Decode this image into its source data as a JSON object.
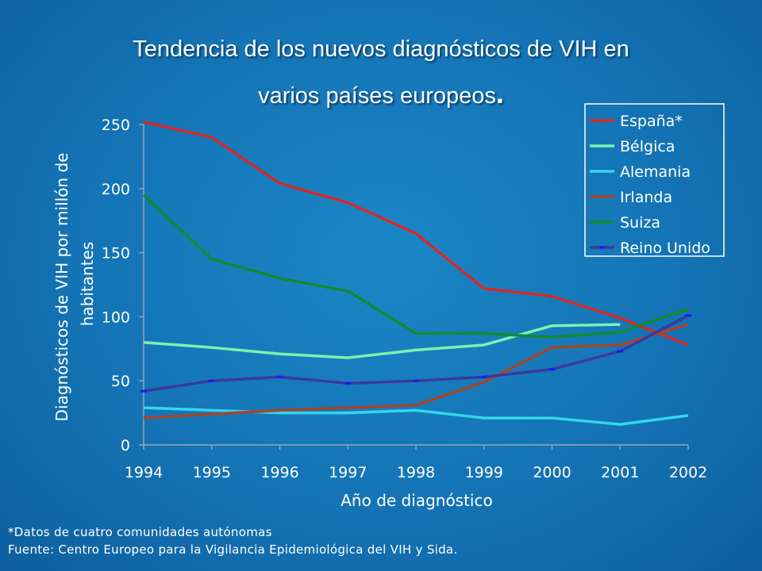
{
  "slide": {
    "title_line1": "Tendencia de los nuevos diagnósticos de VIH en",
    "title_line2": "varios países europeos",
    "title_end": ".",
    "footnote": "*Datos de cuatro comunidades autónomas",
    "source": "Fuente: Centro Europeo para la Vigilancia Epidemiológica del VIH y Sida."
  },
  "chart_data": {
    "type": "line",
    "title": "Tendencia de los nuevos diagnósticos de VIH en varios países europeos.",
    "xlabel": "Año de diagnóstico",
    "ylabel_line1": "Diagnósticos de VIH por millón de",
    "ylabel_line2": "habitantes",
    "x": [
      "1994",
      "1995",
      "1996",
      "1997",
      "1998",
      "1999",
      "2000",
      "2001",
      "2002"
    ],
    "ylim": [
      0,
      250
    ],
    "yticks": [
      0,
      50,
      100,
      150,
      200,
      250
    ],
    "grid": false,
    "legend_position": "top-right",
    "series": [
      {
        "name": "España*",
        "color": "#d42a2a",
        "values": [
          252,
          240,
          204,
          189,
          165,
          122,
          116,
          99,
          78
        ]
      },
      {
        "name": "Bélgica",
        "color": "#7ef0b0",
        "values": [
          80,
          76,
          71,
          68,
          74,
          78,
          93,
          94,
          null
        ]
      },
      {
        "name": "Alemania",
        "color": "#33d6f0",
        "values": [
          29,
          27,
          25,
          25,
          27,
          21,
          21,
          16,
          23
        ]
      },
      {
        "name": "Irlanda",
        "color": "#a4462a",
        "values": [
          21,
          24,
          27,
          29,
          31,
          49,
          76,
          78,
          94
        ]
      },
      {
        "name": "Suiza",
        "color": "#128a32",
        "values": [
          195,
          145,
          130,
          120,
          87,
          87,
          84,
          88,
          106
        ]
      },
      {
        "name": "Reino Unido",
        "color": "#3a3a9c",
        "values": [
          42,
          50,
          53,
          48,
          50,
          53,
          59,
          73,
          101
        ]
      }
    ]
  }
}
